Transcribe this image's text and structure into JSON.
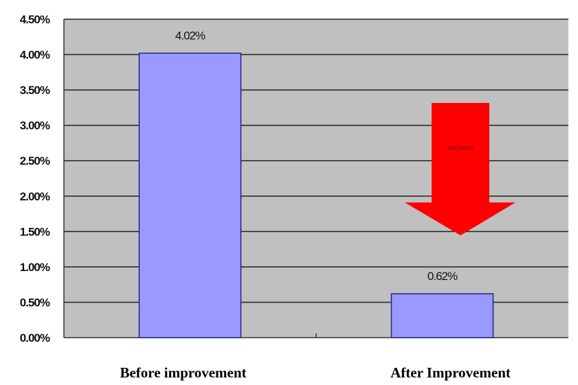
{
  "chart_data": {
    "type": "bar",
    "categories": [
      "Before improvement",
      "After Improvement"
    ],
    "values": [
      4.02,
      0.62
    ],
    "data_labels": [
      "4.02%",
      "0.62%"
    ],
    "ylim": [
      0,
      4.5
    ],
    "y_ticks": [
      0,
      0.5,
      1.0,
      1.5,
      2.0,
      2.5,
      3.0,
      3.5,
      4.0,
      4.5
    ],
    "y_tick_labels": [
      "0.00%",
      "0.50%",
      "1.00%",
      "1.50%",
      "2.00%",
      "2.50%",
      "3.00%",
      "3.50%",
      "4.00%",
      "4.50%"
    ],
    "grid": true,
    "legend": "none",
    "colors": {
      "plot_background": "#c0c0c0",
      "bar_fill": "#9999ff",
      "bar_stroke": "#22228a",
      "gridline": "#222222",
      "arrow": "#ff0000"
    },
    "annotation": {
      "type": "down-arrow",
      "text": "decrease"
    }
  }
}
